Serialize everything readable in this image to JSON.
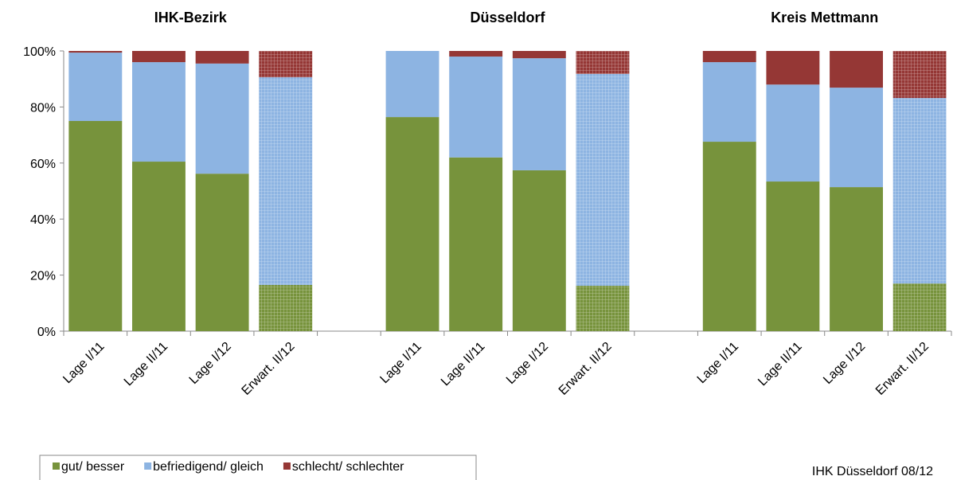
{
  "chart_data": {
    "type": "stacked_bar",
    "groups": [
      "IHK-Bezirk",
      "Düsseldorf",
      "Kreis Mettmann"
    ],
    "categories": [
      "Lage I/11",
      "Lage II/11",
      "Lage I/12",
      "Erwart. II/12",
      null,
      "Lage I/11",
      "Lage II/11",
      "Lage I/12",
      "Erwart. II/12",
      null,
      "Lage I/11",
      "Lage II/11",
      "Lage I/12",
      "Erwart. II/12"
    ],
    "series": [
      {
        "name": "gut/ besser",
        "color": "#77933c",
        "values": [
          75,
          60.5,
          56.2,
          16.5,
          null,
          76.4,
          62,
          57.4,
          16.2,
          null,
          67.6,
          53.4,
          51.4,
          17
        ]
      },
      {
        "name": "befriedigend/ gleich",
        "color": "#8db4e2",
        "values": [
          24.4,
          35.5,
          39.3,
          74.1,
          null,
          23.6,
          36,
          40,
          75.6,
          null,
          28.4,
          34.6,
          35.5,
          66.2
        ]
      },
      {
        "name": "schlecht/ schlechter",
        "color": "#953735",
        "values": [
          0.6,
          4,
          4.5,
          9.4,
          null,
          0,
          2,
          2.6,
          8.2,
          null,
          4,
          12,
          13.1,
          16.8
        ]
      }
    ],
    "hatched": [
      3,
      8,
      13
    ],
    "ylim": [
      0,
      100
    ],
    "yticks": [
      {
        "value": 0,
        "label": "0%"
      },
      {
        "value": 20,
        "label": "20%"
      },
      {
        "value": 40,
        "label": "40%"
      },
      {
        "value": 60,
        "label": "60%"
      },
      {
        "value": 80,
        "label": "80%"
      },
      {
        "value": 100,
        "label": "100%"
      }
    ],
    "source": "IHK Düsseldorf 08/12"
  }
}
